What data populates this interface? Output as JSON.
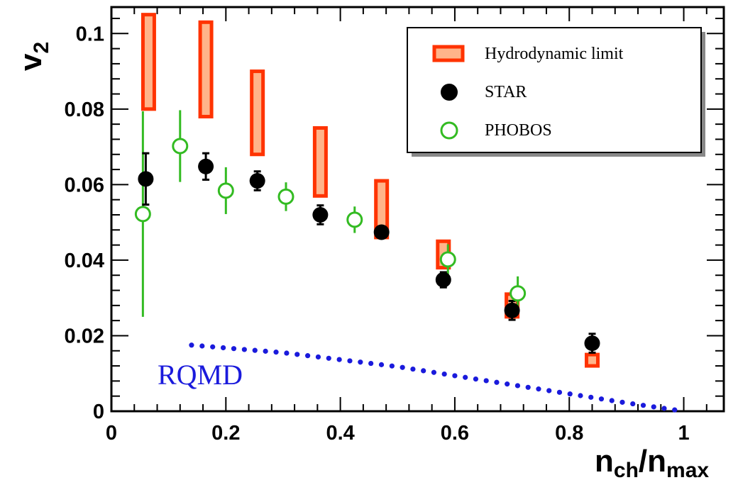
{
  "chart_data": {
    "type": "scatter",
    "xlabel": {
      "main": "n",
      "sub1": "ch",
      "slash": "/n",
      "sub2": "max"
    },
    "ylabel": {
      "main": "v",
      "sub": "2"
    },
    "xlim": [
      0,
      1.07
    ],
    "ylim": [
      0,
      0.107
    ],
    "x_ticks": [
      {
        "value": 0,
        "label": "0"
      },
      {
        "value": 0.2,
        "label": "0.2"
      },
      {
        "value": 0.4,
        "label": "0.4"
      },
      {
        "value": 0.6,
        "label": "0.6"
      },
      {
        "value": 0.8,
        "label": "0.8"
      },
      {
        "value": 1.0,
        "label": "1"
      }
    ],
    "y_ticks": [
      {
        "value": 0,
        "label": "0"
      },
      {
        "value": 0.02,
        "label": "0.02"
      },
      {
        "value": 0.04,
        "label": "0.04"
      },
      {
        "value": 0.06,
        "label": "0.06"
      },
      {
        "value": 0.08,
        "label": "0.08"
      },
      {
        "value": 0.1,
        "label": "0.1"
      }
    ],
    "legend_position": "top-right",
    "series": [
      {
        "name": "Hydrodynamic limit",
        "style": "band",
        "color": "#ff3300",
        "fill": "#ffb48a",
        "points": [
          {
            "x": 0.065,
            "low": 0.08,
            "high": 0.105
          },
          {
            "x": 0.165,
            "low": 0.078,
            "high": 0.103
          },
          {
            "x": 0.255,
            "low": 0.068,
            "high": 0.09
          },
          {
            "x": 0.365,
            "low": 0.057,
            "high": 0.075
          },
          {
            "x": 0.472,
            "low": 0.046,
            "high": 0.061
          },
          {
            "x": 0.58,
            "low": 0.038,
            "high": 0.045
          },
          {
            "x": 0.7,
            "low": 0.025,
            "high": 0.031
          },
          {
            "x": 0.84,
            "low": 0.012,
            "high": 0.015
          }
        ]
      },
      {
        "name": "STAR",
        "style": "filled-circle",
        "color": "#000000",
        "points": [
          {
            "x": 0.06,
            "y": 0.0615,
            "err": 0.0068
          },
          {
            "x": 0.165,
            "y": 0.0648,
            "err": 0.0035
          },
          {
            "x": 0.255,
            "y": 0.061,
            "err": 0.0025
          },
          {
            "x": 0.365,
            "y": 0.052,
            "err": 0.0025
          },
          {
            "x": 0.472,
            "y": 0.0474,
            "err": 0.0015
          },
          {
            "x": 0.58,
            "y": 0.0348,
            "err": 0.002
          },
          {
            "x": 0.7,
            "y": 0.0267,
            "err": 0.0025
          },
          {
            "x": 0.84,
            "y": 0.018,
            "err": 0.0025
          }
        ]
      },
      {
        "name": "PHOBOS",
        "style": "open-circle",
        "color": "#33bb22",
        "points": [
          {
            "x": 0.055,
            "y": 0.0522,
            "err": 0.0272
          },
          {
            "x": 0.12,
            "y": 0.0702,
            "err": 0.0095
          },
          {
            "x": 0.2,
            "y": 0.0584,
            "err": 0.0062
          },
          {
            "x": 0.305,
            "y": 0.0568,
            "err": 0.0038
          },
          {
            "x": 0.425,
            "y": 0.0507,
            "err": 0.0035
          },
          {
            "x": 0.588,
            "y": 0.0402,
            "err": 0.004
          },
          {
            "x": 0.71,
            "y": 0.0312,
            "err": 0.0045
          }
        ]
      }
    ],
    "curve": {
      "label": "RQMD",
      "style": "dotted",
      "color": "#1a1adc",
      "x": [
        0.14,
        0.3,
        0.5,
        0.7,
        0.9,
        1.0
      ],
      "y": [
        0.0175,
        0.0155,
        0.0118,
        0.007,
        0.0022,
        0.0
      ]
    }
  }
}
